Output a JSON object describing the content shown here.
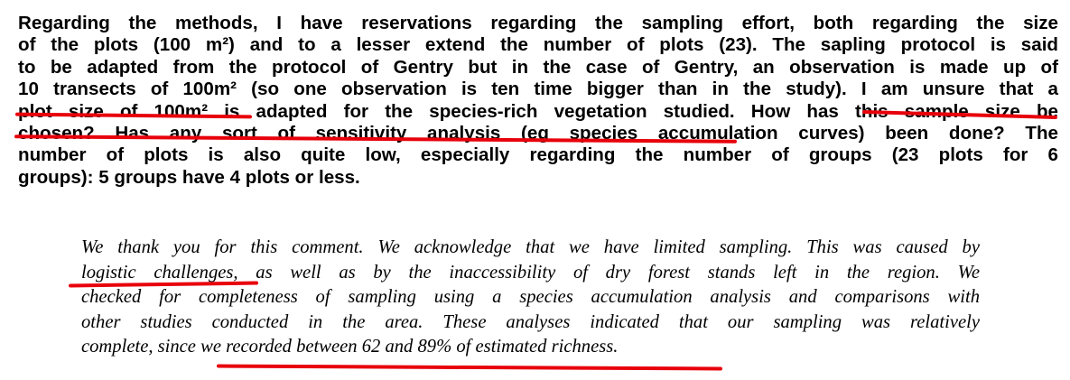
{
  "reviewer_comment": {
    "lines": [
      "Regarding the methods, I have reservations regarding the sampling effort, both regarding the size",
      "of the plots (100 m²) and to a lesser extend the number of plots (23). The sapling protocol is said",
      "to be adapted from the protocol of Gentry but in the case of Gentry, an observation is made up of",
      "10 transects of 100m² (so one observation is ten time bigger than in the study). I am unsure that a",
      "plot size of 100m² is adapted for the species-rich vegetation studied. How has this sample size be",
      "chosen? Has any sort of sensitivity analysis (eg species accumulation curves) been done? The",
      "number of plots is also quite low, especially regarding the number of groups (23 plots for 6",
      "groups): 5 groups have 4 plots or less."
    ]
  },
  "author_response": {
    "lines": [
      "We thank you for this comment. We acknowledge that we have limited sampling. This was caused by",
      "logistic challenges, as well as by the inaccessibility of dry forest stands left in the region. We",
      "checked for completeness of sampling using a species accumulation analysis and comparisons with",
      "other studies conducted in the area. These analyses indicated that our sampling was relatively",
      "complete, since we recorded between 62 and 89% of estimated richness."
    ]
  },
  "annotation_color": "#e8000b"
}
